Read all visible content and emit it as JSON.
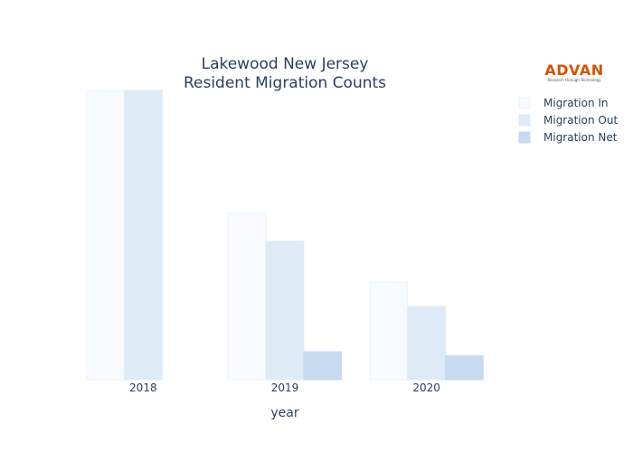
{
  "chart_data": {
    "type": "bar",
    "title": [
      "Lakewood New Jersey",
      "Resident Migration Counts"
    ],
    "xlabel": "year",
    "ylabel": "",
    "categories": [
      "2018",
      "2019",
      "2020"
    ],
    "series": [
      {
        "name": "Migration In",
        "values": [
          6000,
          3450,
          2020
        ],
        "color": "#f7fbff",
        "stroke": "#ebf3fb"
      },
      {
        "name": "Migration Out",
        "values": [
          6000,
          2870,
          1520
        ],
        "color": "#deebf7",
        "stroke": "#deebf7"
      },
      {
        "name": "Migration Net",
        "values": [
          0,
          580,
          500
        ],
        "color": "#c6dbef",
        "stroke": "#c6dbef"
      }
    ],
    "ylim": [
      0,
      6000
    ],
    "grid": false,
    "legend_position": "top-right"
  },
  "logo": {
    "name": "ADVAN",
    "tagline": "Research through Technology"
  }
}
